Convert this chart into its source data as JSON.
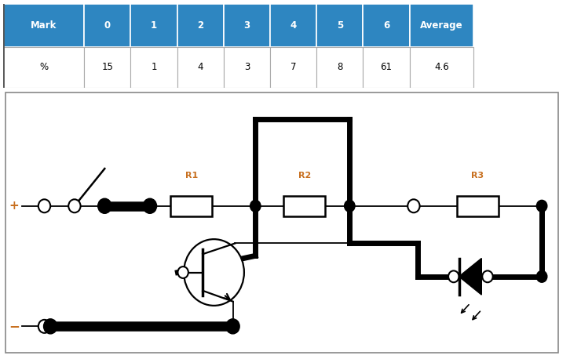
{
  "table_header": [
    "Mark",
    "0",
    "1",
    "2",
    "3",
    "4",
    "5",
    "6",
    "Average"
  ],
  "table_row": [
    "%",
    "15",
    "1",
    "4",
    "3",
    "7",
    "8",
    "61",
    "4.6"
  ],
  "header_color": "#2E86C1",
  "header_text_color": "#FFFFFF",
  "label_color": "#C87020",
  "wire_color": "#000000",
  "table_row_label_color": "#000000",
  "lw_thick": 5.0,
  "lw_thin": 1.3,
  "lw_resistor": 1.8
}
